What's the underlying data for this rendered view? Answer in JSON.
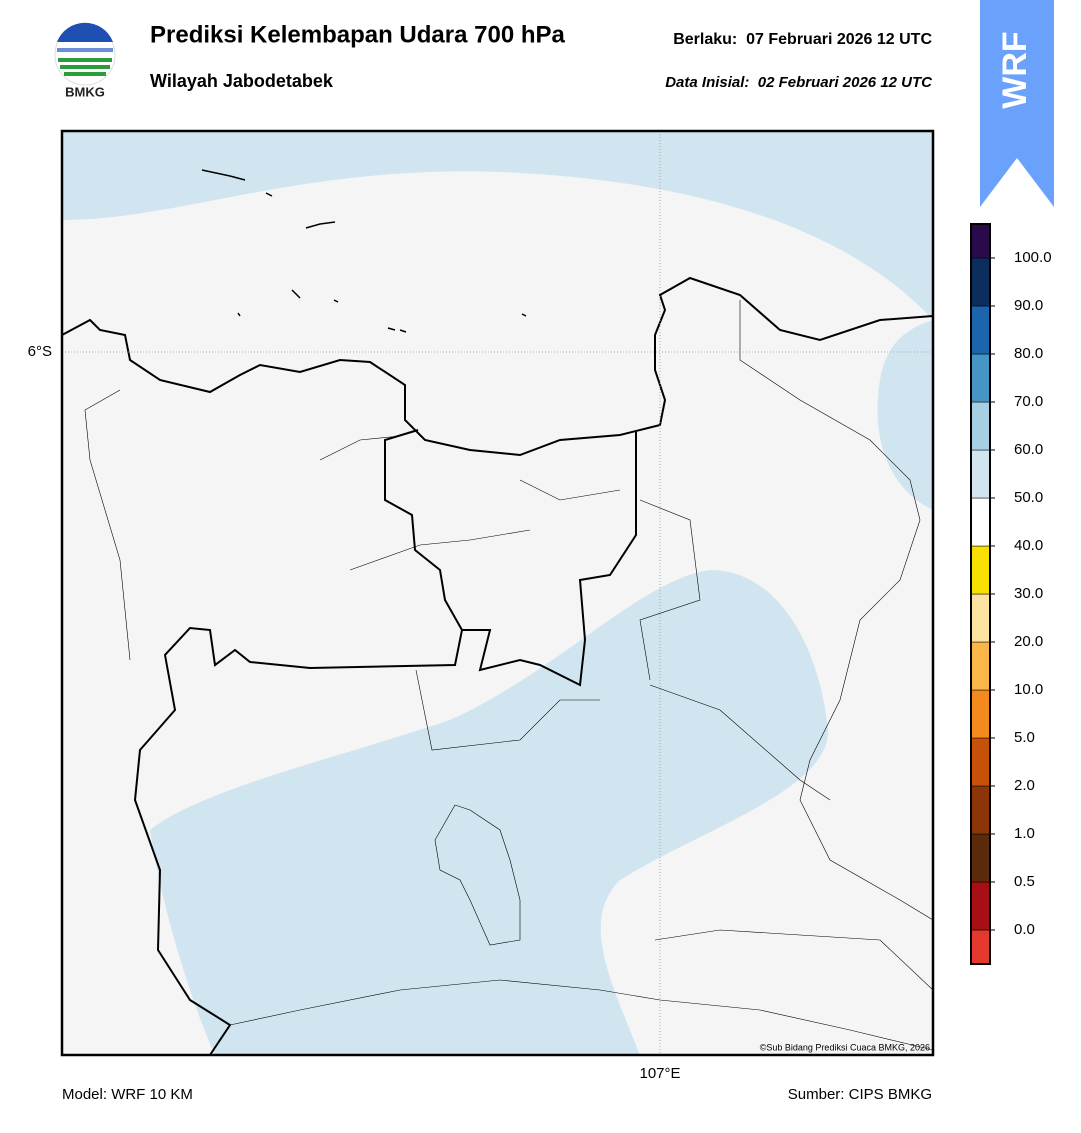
{
  "header": {
    "title": "Prediksi Kelembapan Udara 700 hPa",
    "subtitle": "Wilayah Jabodetabek",
    "valid": "Berlaku:  07 Februari 2026 12 UTC",
    "init": "Data Inisial:  02 Februari 2026 12 UTC",
    "logo_text": "BMKG",
    "badge": "WRF"
  },
  "map": {
    "lat_label": "6°S",
    "lon_label": "107°E",
    "credit": "©Sub Bidang Prediksi Cuaca BMKG, 2026"
  },
  "colorbar": {
    "labels": [
      "0.0",
      "0.5",
      "1.0",
      "2.0",
      "5.0",
      "10.0",
      "20.0",
      "30.0",
      "40.0",
      "50.0",
      "60.0",
      "70.0",
      "80.0",
      "90.0",
      "100.0"
    ],
    "colors": [
      "#e6392e",
      "#a50f15",
      "#5a2a0a",
      "#8c3608",
      "#c8510a",
      "#f28a1e",
      "#fbb64a",
      "#fde3a0",
      "#f7e000",
      "#ffffff",
      "#d1e5f0",
      "#a6cfe3",
      "#4596c7",
      "#1b64ae",
      "#0b2e5e",
      "#2a0a4a"
    ]
  },
  "footer": {
    "model": "Model: WRF 10 KM",
    "source": "Sumber: CIPS BMKG"
  }
}
